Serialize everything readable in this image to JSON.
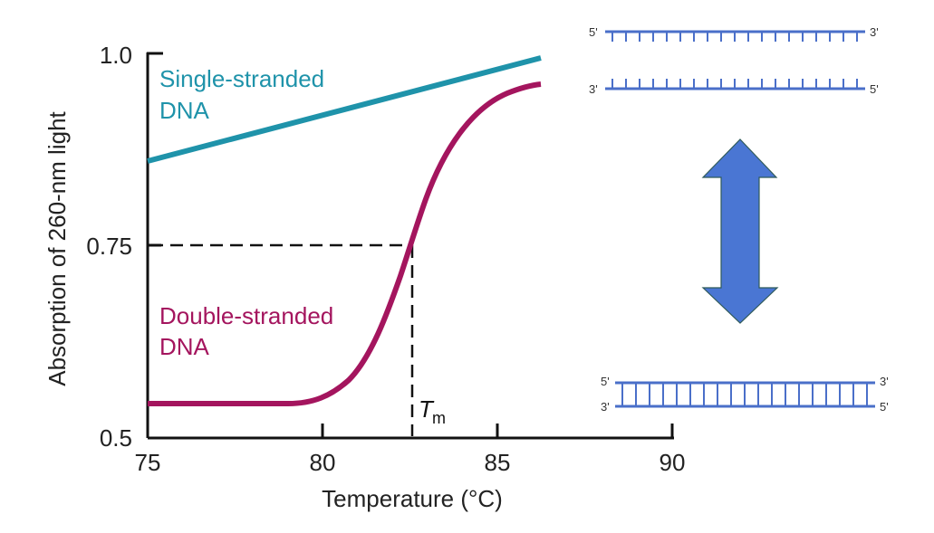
{
  "chart_data": {
    "type": "line",
    "title": "",
    "xlabel": "Temperature (°C)",
    "ylabel": "Absorption of 260-nm light",
    "xlim": [
      75,
      90
    ],
    "ylim": [
      0.5,
      1.0
    ],
    "x_ticks": [
      75,
      80,
      85,
      90
    ],
    "x_tick_labels": [
      "75",
      "80",
      "85",
      "90"
    ],
    "y_ticks": [
      0.5,
      0.75,
      1.0
    ],
    "y_tick_labels": [
      "0.5",
      "0.75",
      "1.0"
    ],
    "grid": false,
    "series": [
      {
        "name": "Single-stranded DNA",
        "color": "#1f93aa",
        "x": [
          75,
          77,
          79,
          81,
          83,
          85,
          86.2
        ],
        "y": [
          0.86,
          0.885,
          0.91,
          0.935,
          0.96,
          0.985,
          0.995
        ]
      },
      {
        "name": "Double-stranded DNA",
        "color": "#a4155e",
        "x": [
          75,
          77,
          79,
          79.5,
          80,
          80.5,
          81,
          81.5,
          82,
          82.5,
          83,
          83.5,
          84,
          84.5,
          85,
          85.5,
          86.2
        ],
        "y": [
          0.545,
          0.545,
          0.545,
          0.548,
          0.56,
          0.58,
          0.61,
          0.65,
          0.7,
          0.75,
          0.8,
          0.845,
          0.88,
          0.91,
          0.93,
          0.945,
          0.96
        ]
      }
    ],
    "annotations": [
      {
        "text": "Single-stranded DNA",
        "color": "#1f93aa",
        "position": "upper-left"
      },
      {
        "text": "Double-stranded DNA",
        "color": "#a4155e",
        "position": "middle-left"
      },
      {
        "text": "Tm",
        "x": 82.5,
        "y": 0.75,
        "type": "dashed reference lines to both axes"
      }
    ],
    "legend": "inline labels"
  },
  "labels": {
    "y_axis": "Absorption of 260-nm light",
    "x_axis": "Temperature (°C)",
    "single_line1": "Single-stranded",
    "single_line2": "DNA",
    "double_line1": "Double-stranded",
    "double_line2": "DNA",
    "tm_main": "T",
    "tm_sub": "m",
    "y_tick_1": "1.0",
    "y_tick_075": "0.75",
    "y_tick_05": "0.5",
    "x_tick_75": "75",
    "x_tick_80": "80",
    "x_tick_85": "85",
    "x_tick_90": "90"
  },
  "diagram": {
    "separated_top": {
      "left": "5'",
      "right": "3'"
    },
    "separated_bottom": {
      "left": "3'",
      "right": "5'"
    },
    "duplex_top": {
      "left": "5'",
      "right": "3'"
    },
    "duplex_bottom": {
      "left": "3'",
      "right": "5'"
    },
    "arrow_color": "#4a76d3",
    "strand_color": "#4a6fc9"
  }
}
